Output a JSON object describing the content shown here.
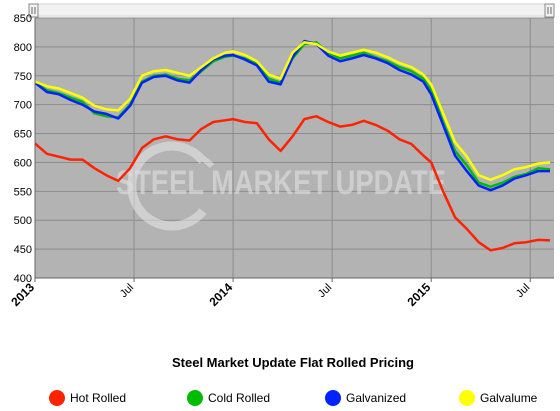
{
  "chart_data": {
    "type": "line",
    "title": "Steel Market Update Flat Rolled Pricing",
    "watermark": "STEEL MARKET UPDATE",
    "ylim": [
      400,
      850
    ],
    "yticks": [
      400,
      450,
      500,
      550,
      600,
      650,
      700,
      750,
      800,
      850
    ],
    "xlim": [
      2013.0,
      2015.62
    ],
    "xticks": [
      {
        "label": "2013",
        "value": 2013.0,
        "major": true
      },
      {
        "label": "Jul",
        "value": 2013.5,
        "major": false
      },
      {
        "label": "2014",
        "value": 2014.0,
        "major": true
      },
      {
        "label": "Jul",
        "value": 2014.5,
        "major": false
      },
      {
        "label": "2015",
        "value": 2015.0,
        "major": true
      },
      {
        "label": "Jul",
        "value": 2015.5,
        "major": false
      }
    ],
    "grid": true,
    "legend_position": "bottom",
    "plot_background": "#b3b3b3",
    "x": [
      2013.0,
      2013.06,
      2013.12,
      2013.18,
      2013.24,
      2013.3,
      2013.36,
      2013.42,
      2013.48,
      2013.54,
      2013.6,
      2013.66,
      2013.72,
      2013.78,
      2013.84,
      2013.9,
      2013.96,
      2014.0,
      2014.06,
      2014.12,
      2014.18,
      2014.24,
      2014.3,
      2014.36,
      2014.42,
      2014.48,
      2014.54,
      2014.6,
      2014.66,
      2014.72,
      2014.78,
      2014.84,
      2014.9,
      2014.96,
      2015.0,
      2015.06,
      2015.12,
      2015.18,
      2015.24,
      2015.3,
      2015.36,
      2015.42,
      2015.48,
      2015.54,
      2015.6
    ],
    "series": [
      {
        "name": "Hot Rolled",
        "color": "#ff2200",
        "values": [
          633,
          615,
          610,
          605,
          605,
          590,
          578,
          568,
          590,
          625,
          640,
          645,
          640,
          638,
          658,
          670,
          673,
          675,
          670,
          668,
          640,
          620,
          645,
          675,
          680,
          670,
          662,
          665,
          672,
          665,
          655,
          640,
          632,
          612,
          600,
          550,
          505,
          485,
          462,
          448,
          452,
          460,
          462,
          466,
          465
        ]
      },
      {
        "name": "Cold Rolled",
        "color": "#00bb00",
        "values": [
          738,
          725,
          720,
          712,
          705,
          685,
          680,
          678,
          700,
          740,
          750,
          752,
          745,
          742,
          758,
          775,
          783,
          785,
          780,
          770,
          745,
          738,
          780,
          805,
          808,
          790,
          780,
          785,
          790,
          782,
          775,
          765,
          758,
          745,
          725,
          670,
          620,
          595,
          565,
          558,
          565,
          575,
          580,
          590,
          588
        ]
      },
      {
        "name": "Galvanized",
        "color": "#0022ff",
        "values": [
          738,
          722,
          718,
          708,
          700,
          688,
          684,
          676,
          698,
          738,
          748,
          750,
          742,
          738,
          760,
          778,
          785,
          786,
          778,
          768,
          740,
          735,
          782,
          810,
          805,
          785,
          775,
          780,
          786,
          780,
          772,
          760,
          752,
          740,
          718,
          665,
          612,
          585,
          560,
          552,
          560,
          572,
          578,
          585,
          585
        ]
      },
      {
        "name": "Galvalume",
        "color": "#ffff00",
        "values": [
          740,
          732,
          728,
          720,
          712,
          698,
          692,
          690,
          710,
          750,
          758,
          760,
          755,
          750,
          765,
          780,
          790,
          792,
          786,
          775,
          752,
          745,
          790,
          808,
          805,
          792,
          785,
          790,
          795,
          790,
          782,
          772,
          765,
          752,
          735,
          685,
          635,
          610,
          578,
          570,
          578,
          588,
          592,
          598,
          600
        ]
      }
    ]
  }
}
